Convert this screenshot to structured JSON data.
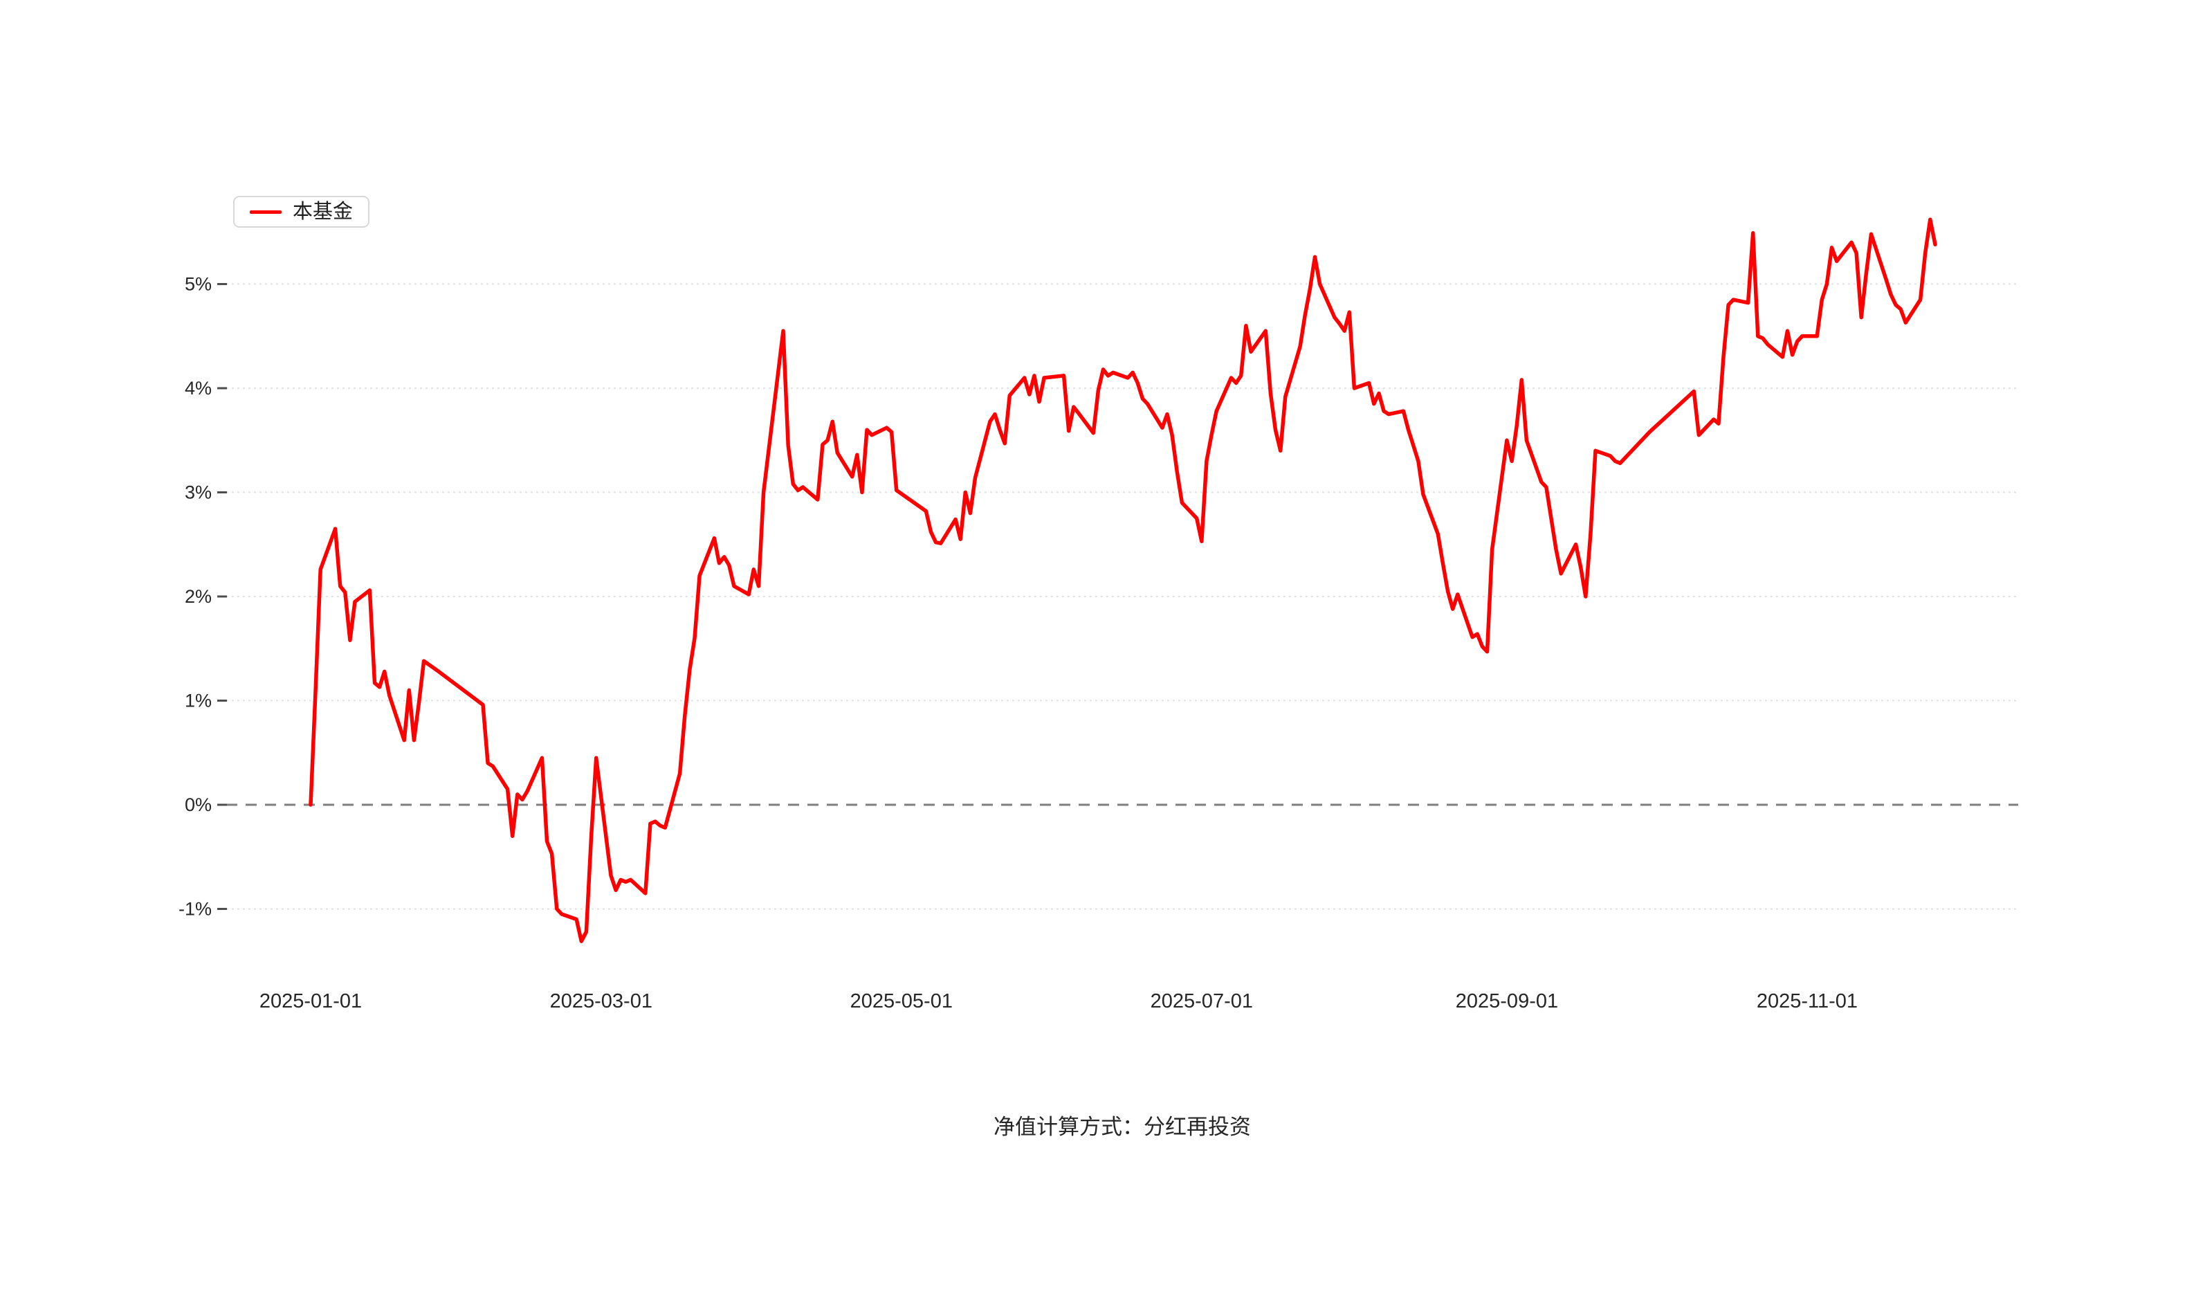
{
  "caption": "净值计算方式：分红再投资",
  "legend": {
    "label": "本基金",
    "color": "#ff0000"
  },
  "chart_data": {
    "type": "line",
    "title": "",
    "xlabel": "",
    "ylabel": "",
    "unit": "%",
    "grid": "on",
    "legend_position": "top-left",
    "zero_baseline": "dashed",
    "ylim": [
      -1.45,
      5.9
    ],
    "y_ticks": {
      "values": [
        5,
        4,
        3,
        2,
        1,
        0,
        -1
      ],
      "labels": [
        "5%",
        "4%",
        "3%",
        "2%",
        "1%",
        "0%",
        "-1%"
      ]
    },
    "x_ticks": [
      "2025-01-01",
      "2025-03-01",
      "2025-05-01",
      "2025-07-01",
      "2025-09-01",
      "2025-11-01"
    ],
    "footnote": "净值计算方式：分红再投资",
    "series": [
      {
        "name": "本基金",
        "color": "#ff0000",
        "points": [
          [
            "2025-01-01",
            0.0
          ],
          [
            "2025-01-02",
            1.1
          ],
          [
            "2025-01-03",
            2.26
          ],
          [
            "2025-01-06",
            2.65
          ],
          [
            "2025-01-07",
            2.1
          ],
          [
            "2025-01-08",
            2.04
          ],
          [
            "2025-01-09",
            1.58
          ],
          [
            "2025-01-10",
            1.95
          ],
          [
            "2025-01-13",
            2.06
          ],
          [
            "2025-01-14",
            1.17
          ],
          [
            "2025-01-15",
            1.13
          ],
          [
            "2025-01-16",
            1.28
          ],
          [
            "2025-01-17",
            1.05
          ],
          [
            "2025-01-20",
            0.62
          ],
          [
            "2025-01-21",
            1.1
          ],
          [
            "2025-01-22",
            0.62
          ],
          [
            "2025-01-23",
            0.98
          ],
          [
            "2025-01-24",
            1.38
          ],
          [
            "2025-01-27",
            1.28
          ],
          [
            "2025-02-05",
            0.96
          ],
          [
            "2025-02-06",
            0.4
          ],
          [
            "2025-02-07",
            0.37
          ],
          [
            "2025-02-10",
            0.15
          ],
          [
            "2025-02-11",
            -0.3
          ],
          [
            "2025-02-12",
            0.1
          ],
          [
            "2025-02-13",
            0.05
          ],
          [
            "2025-02-14",
            0.13
          ],
          [
            "2025-02-17",
            0.45
          ],
          [
            "2025-02-18",
            -0.35
          ],
          [
            "2025-02-19",
            -0.47
          ],
          [
            "2025-02-20",
            -1.0
          ],
          [
            "2025-02-21",
            -1.05
          ],
          [
            "2025-02-24",
            -1.1
          ],
          [
            "2025-02-25",
            -1.31
          ],
          [
            "2025-02-26",
            -1.22
          ],
          [
            "2025-02-27",
            -0.3
          ],
          [
            "2025-02-28",
            0.45
          ],
          [
            "2025-03-03",
            -0.68
          ],
          [
            "2025-03-04",
            -0.82
          ],
          [
            "2025-03-05",
            -0.72
          ],
          [
            "2025-03-06",
            -0.74
          ],
          [
            "2025-03-07",
            -0.72
          ],
          [
            "2025-03-10",
            -0.85
          ],
          [
            "2025-03-11",
            -0.18
          ],
          [
            "2025-03-12",
            -0.16
          ],
          [
            "2025-03-13",
            -0.2
          ],
          [
            "2025-03-14",
            -0.22
          ],
          [
            "2025-03-17",
            0.3
          ],
          [
            "2025-03-18",
            0.85
          ],
          [
            "2025-03-19",
            1.3
          ],
          [
            "2025-03-20",
            1.6
          ],
          [
            "2025-03-21",
            2.2
          ],
          [
            "2025-03-24",
            2.56
          ],
          [
            "2025-03-25",
            2.32
          ],
          [
            "2025-03-26",
            2.38
          ],
          [
            "2025-03-27",
            2.3
          ],
          [
            "2025-03-28",
            2.1
          ],
          [
            "2025-03-31",
            2.02
          ],
          [
            "2025-04-01",
            2.26
          ],
          [
            "2025-04-02",
            2.1
          ],
          [
            "2025-04-03",
            3.0
          ],
          [
            "2025-04-07",
            4.55
          ],
          [
            "2025-04-08",
            3.45
          ],
          [
            "2025-04-09",
            3.08
          ],
          [
            "2025-04-10",
            3.02
          ],
          [
            "2025-04-11",
            3.05
          ],
          [
            "2025-04-14",
            2.93
          ],
          [
            "2025-04-15",
            3.46
          ],
          [
            "2025-04-16",
            3.5
          ],
          [
            "2025-04-17",
            3.68
          ],
          [
            "2025-04-18",
            3.38
          ],
          [
            "2025-04-21",
            3.15
          ],
          [
            "2025-04-22",
            3.36
          ],
          [
            "2025-04-23",
            3.0
          ],
          [
            "2025-04-24",
            3.6
          ],
          [
            "2025-04-25",
            3.55
          ],
          [
            "2025-04-28",
            3.62
          ],
          [
            "2025-04-29",
            3.58
          ],
          [
            "2025-04-30",
            3.02
          ],
          [
            "2025-05-06",
            2.82
          ],
          [
            "2025-05-07",
            2.62
          ],
          [
            "2025-05-08",
            2.52
          ],
          [
            "2025-05-09",
            2.51
          ],
          [
            "2025-05-12",
            2.74
          ],
          [
            "2025-05-13",
            2.55
          ],
          [
            "2025-05-14",
            3.0
          ],
          [
            "2025-05-15",
            2.8
          ],
          [
            "2025-05-16",
            3.14
          ],
          [
            "2025-05-19",
            3.68
          ],
          [
            "2025-05-20",
            3.75
          ],
          [
            "2025-05-21",
            3.6
          ],
          [
            "2025-05-22",
            3.47
          ],
          [
            "2025-05-23",
            3.93
          ],
          [
            "2025-05-26",
            4.1
          ],
          [
            "2025-05-27",
            3.94
          ],
          [
            "2025-05-28",
            4.12
          ],
          [
            "2025-05-29",
            3.87
          ],
          [
            "2025-05-30",
            4.1
          ],
          [
            "2025-06-03",
            4.12
          ],
          [
            "2025-06-04",
            3.59
          ],
          [
            "2025-06-05",
            3.82
          ],
          [
            "2025-06-06",
            3.76
          ],
          [
            "2025-06-09",
            3.57
          ],
          [
            "2025-06-10",
            3.98
          ],
          [
            "2025-06-11",
            4.18
          ],
          [
            "2025-06-12",
            4.12
          ],
          [
            "2025-06-13",
            4.15
          ],
          [
            "2025-06-16",
            4.1
          ],
          [
            "2025-06-17",
            4.15
          ],
          [
            "2025-06-18",
            4.05
          ],
          [
            "2025-06-19",
            3.9
          ],
          [
            "2025-06-20",
            3.85
          ],
          [
            "2025-06-23",
            3.62
          ],
          [
            "2025-06-24",
            3.75
          ],
          [
            "2025-06-25",
            3.55
          ],
          [
            "2025-06-26",
            3.2
          ],
          [
            "2025-06-27",
            2.9
          ],
          [
            "2025-06-30",
            2.75
          ],
          [
            "2025-07-01",
            2.53
          ],
          [
            "2025-07-02",
            3.3
          ],
          [
            "2025-07-03",
            3.55
          ],
          [
            "2025-07-04",
            3.78
          ],
          [
            "2025-07-07",
            4.1
          ],
          [
            "2025-07-08",
            4.05
          ],
          [
            "2025-07-09",
            4.12
          ],
          [
            "2025-07-10",
            4.6
          ],
          [
            "2025-07-11",
            4.35
          ],
          [
            "2025-07-14",
            4.55
          ],
          [
            "2025-07-15",
            3.95
          ],
          [
            "2025-07-16",
            3.6
          ],
          [
            "2025-07-17",
            3.4
          ],
          [
            "2025-07-18",
            3.92
          ],
          [
            "2025-07-21",
            4.4
          ],
          [
            "2025-07-22",
            4.7
          ],
          [
            "2025-07-23",
            4.95
          ],
          [
            "2025-07-24",
            5.26
          ],
          [
            "2025-07-25",
            5.0
          ],
          [
            "2025-07-28",
            4.68
          ],
          [
            "2025-07-29",
            4.62
          ],
          [
            "2025-07-30",
            4.55
          ],
          [
            "2025-07-31",
            4.73
          ],
          [
            "2025-08-01",
            4.0
          ],
          [
            "2025-08-04",
            4.05
          ],
          [
            "2025-08-05",
            3.85
          ],
          [
            "2025-08-06",
            3.95
          ],
          [
            "2025-08-07",
            3.78
          ],
          [
            "2025-08-08",
            3.75
          ],
          [
            "2025-08-11",
            3.78
          ],
          [
            "2025-08-12",
            3.6
          ],
          [
            "2025-08-13",
            3.45
          ],
          [
            "2025-08-14",
            3.3
          ],
          [
            "2025-08-15",
            2.98
          ],
          [
            "2025-08-18",
            2.6
          ],
          [
            "2025-08-19",
            2.32
          ],
          [
            "2025-08-20",
            2.05
          ],
          [
            "2025-08-21",
            1.88
          ],
          [
            "2025-08-22",
            2.02
          ],
          [
            "2025-08-25",
            1.61
          ],
          [
            "2025-08-26",
            1.64
          ],
          [
            "2025-08-27",
            1.52
          ],
          [
            "2025-08-28",
            1.47
          ],
          [
            "2025-08-29",
            2.45
          ],
          [
            "2025-09-01",
            3.5
          ],
          [
            "2025-09-02",
            3.3
          ],
          [
            "2025-09-03",
            3.64
          ],
          [
            "2025-09-04",
            4.08
          ],
          [
            "2025-09-05",
            3.5
          ],
          [
            "2025-09-08",
            3.1
          ],
          [
            "2025-09-09",
            3.05
          ],
          [
            "2025-09-10",
            2.75
          ],
          [
            "2025-09-11",
            2.45
          ],
          [
            "2025-09-12",
            2.22
          ],
          [
            "2025-09-15",
            2.5
          ],
          [
            "2025-09-16",
            2.28
          ],
          [
            "2025-09-17",
            2.0
          ],
          [
            "2025-09-18",
            2.6
          ],
          [
            "2025-09-19",
            3.4
          ],
          [
            "2025-09-22",
            3.35
          ],
          [
            "2025-09-23",
            3.3
          ],
          [
            "2025-09-24",
            3.28
          ],
          [
            "2025-09-30",
            3.58
          ],
          [
            "2025-10-09",
            3.97
          ],
          [
            "2025-10-10",
            3.55
          ],
          [
            "2025-10-13",
            3.7
          ],
          [
            "2025-10-14",
            3.66
          ],
          [
            "2025-10-15",
            4.3
          ],
          [
            "2025-10-16",
            4.8
          ],
          [
            "2025-10-17",
            4.85
          ],
          [
            "2025-10-20",
            4.82
          ],
          [
            "2025-10-21",
            5.49
          ],
          [
            "2025-10-22",
            4.5
          ],
          [
            "2025-10-23",
            4.48
          ],
          [
            "2025-10-24",
            4.42
          ],
          [
            "2025-10-27",
            4.3
          ],
          [
            "2025-10-28",
            4.55
          ],
          [
            "2025-10-29",
            4.32
          ],
          [
            "2025-10-30",
            4.45
          ],
          [
            "2025-10-31",
            4.5
          ],
          [
            "2025-11-03",
            4.5
          ],
          [
            "2025-11-04",
            4.85
          ],
          [
            "2025-11-05",
            5.0
          ],
          [
            "2025-11-06",
            5.35
          ],
          [
            "2025-11-07",
            5.22
          ],
          [
            "2025-11-10",
            5.4
          ],
          [
            "2025-11-11",
            5.3
          ],
          [
            "2025-11-12",
            4.68
          ],
          [
            "2025-11-13",
            5.1
          ],
          [
            "2025-11-14",
            5.48
          ],
          [
            "2025-11-17",
            5.05
          ],
          [
            "2025-11-18",
            4.9
          ],
          [
            "2025-11-19",
            4.8
          ],
          [
            "2025-11-20",
            4.76
          ],
          [
            "2025-11-21",
            4.63
          ],
          [
            "2025-11-24",
            4.85
          ],
          [
            "2025-11-25",
            5.3
          ],
          [
            "2025-11-26",
            5.62
          ],
          [
            "2025-11-27",
            5.38
          ]
        ]
      }
    ]
  }
}
